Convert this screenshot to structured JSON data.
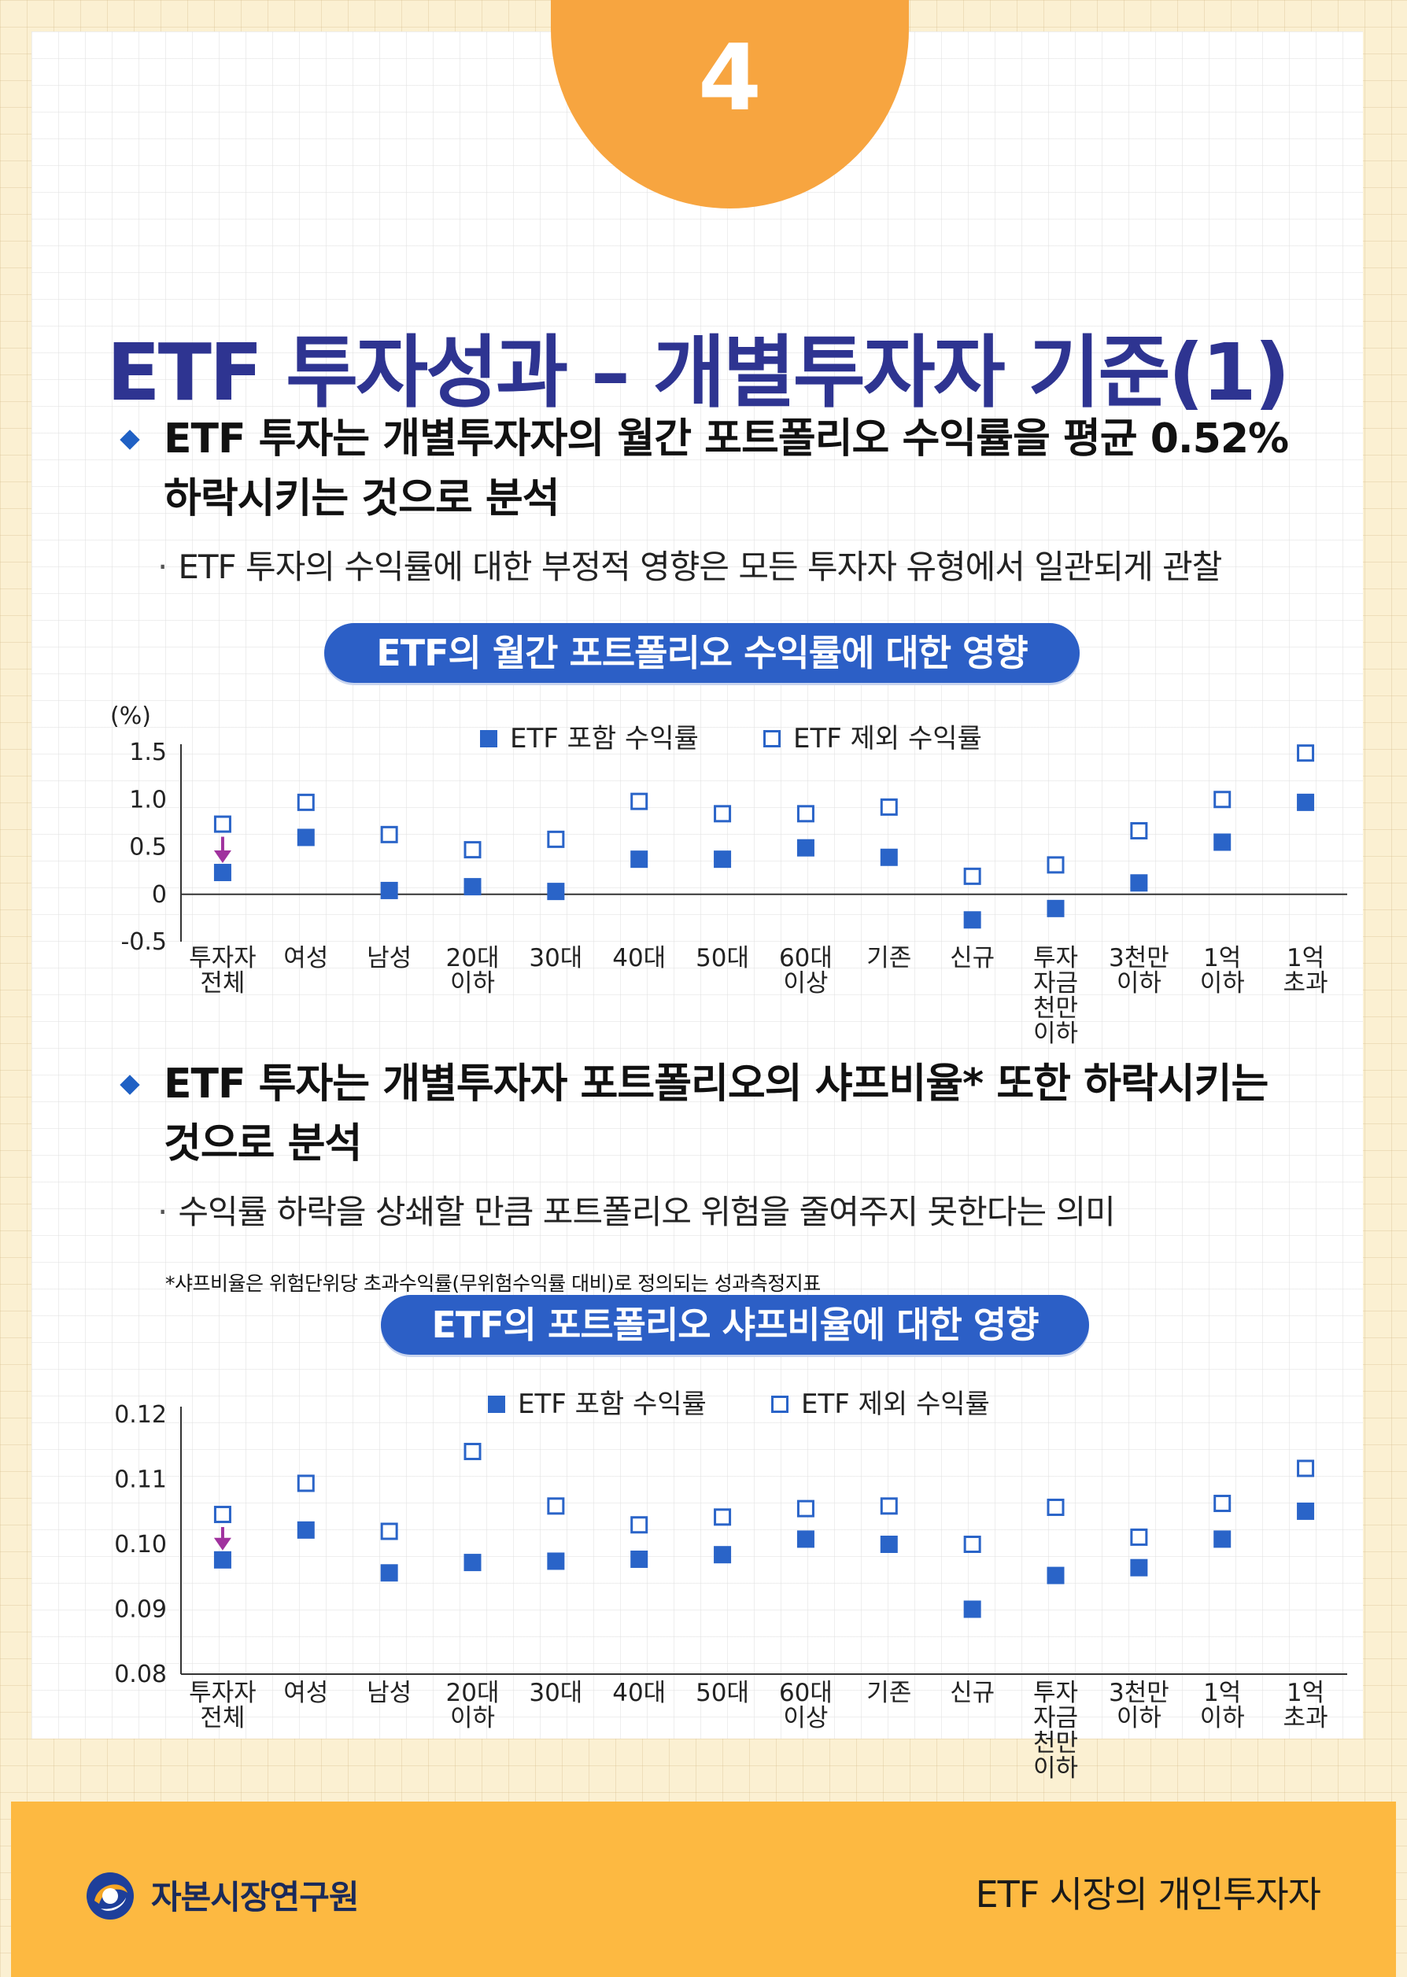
{
  "badge": {
    "number": "4"
  },
  "title": "ETF 투자성과 – 개별투자자 기준(1)",
  "section1": {
    "bullet_line1": "ETF 투자는 개별투자자의 월간 포트폴리오 수익률을 평균 0.52%",
    "bullet_line2": "하락시키는 것으로 분석",
    "sub": "ETF 투자의 수익률에 대한 부정적 영향은 모든 투자자 유형에서 일관되게 관찰",
    "chart_title": "ETF의 월간 포트폴리오 수익률에 대한 영향"
  },
  "section2": {
    "bullet_line1": "ETF 투자는 개별투자자 포트폴리오의 샤프비율* 또한 하락시키는",
    "bullet_line2": "것으로 분석",
    "sub": "수익률 하락을 상쇄할 만큼 포트폴리오 위험을 줄여주지 못한다는 의미",
    "note": "*샤프비율은 위험단위당 초과수익률(무위험수익률 대비)로 정의되는 성과측정지표",
    "chart_title": "ETF의 포트폴리오 샤프비율에 대한 영향"
  },
  "chart_data": [
    {
      "type": "scatter",
      "title": "ETF의 월간 포트폴리오 수익률에 대한 영향",
      "ylabel": "(%)",
      "ylim": [
        -0.5,
        1.5
      ],
      "yticks": [
        "1.5",
        "1.0",
        "0.5",
        "0",
        "-0.5"
      ],
      "ytick_values": [
        1.5,
        1.0,
        0.5,
        0,
        -0.5
      ],
      "categories": [
        "투자자\n전체",
        "여성",
        "남성",
        "20대\n이하",
        "30대",
        "40대",
        "50대",
        "60대\n이상",
        "기존",
        "신규",
        "투자\n자금\n천만\n이하",
        "3천만\n이하",
        "1억\n이하",
        "1억\n초과"
      ],
      "series": [
        {
          "name": "ETF 포함 수익률",
          "marker": "filled",
          "values": [
            0.23,
            0.6,
            0.04,
            0.08,
            0.03,
            0.37,
            0.37,
            0.49,
            0.39,
            -0.27,
            -0.15,
            0.12,
            0.55,
            0.97
          ]
        },
        {
          "name": "ETF 제외 수익률",
          "marker": "hollow",
          "values": [
            0.74,
            0.97,
            0.63,
            0.47,
            0.58,
            0.98,
            0.85,
            0.85,
            0.92,
            0.19,
            0.31,
            0.67,
            1.0,
            1.49
          ]
        }
      ],
      "arrow_category": 0,
      "colors": {
        "marker": "#2a64c8",
        "arrow": "#a0329e",
        "axis": "#333333"
      }
    },
    {
      "type": "scatter",
      "title": "ETF의 포트폴리오 샤프비율에 대한 영향",
      "ylabel": "",
      "ylim": [
        0.08,
        0.12
      ],
      "yticks": [
        "0.12",
        "0.11",
        "0.10",
        "0.09",
        "0.08"
      ],
      "ytick_values": [
        0.12,
        0.11,
        0.1,
        0.09,
        0.08
      ],
      "categories": [
        "투자자\n전체",
        "여성",
        "남성",
        "20대\n이하",
        "30대",
        "40대",
        "50대",
        "60대\n이상",
        "기존",
        "신규",
        "투자\n자금\n천만\n이하",
        "3천만\n이하",
        "1억\n이하",
        "1억\n초과"
      ],
      "series": [
        {
          "name": "ETF 포함 수익률",
          "marker": "filled",
          "values": [
            0.0976,
            0.1022,
            0.0956,
            0.0972,
            0.0974,
            0.0977,
            0.0984,
            0.1008,
            0.1,
            0.09,
            0.0952,
            0.0964,
            0.1008,
            0.1051
          ]
        },
        {
          "name": "ETF 제외 수익률",
          "marker": "hollow",
          "values": [
            0.1046,
            0.1094,
            0.102,
            0.1143,
            0.1059,
            0.103,
            0.1042,
            0.1055,
            0.1059,
            0.1,
            0.1057,
            0.1011,
            0.1063,
            0.1117
          ]
        }
      ],
      "arrow_category": 0,
      "colors": {
        "marker": "#2a64c8",
        "arrow": "#a0329e",
        "axis": "#333333"
      }
    }
  ],
  "footer": {
    "logo_text": "자본시장연구원",
    "right_text": "ETF 시장의 개인투자자",
    "logo_icon": "kcmi-logo-icon"
  }
}
